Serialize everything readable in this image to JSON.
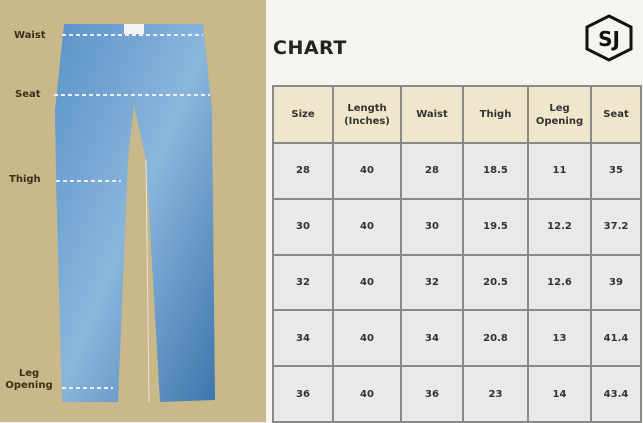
{
  "labels": {
    "waist": "Waist",
    "seat": "Seat",
    "thigh": "Thigh",
    "leg_opening": "Leg Opening"
  },
  "title": "CHART",
  "logo_text": "SJ",
  "colors": {
    "panel": "#c9b98a",
    "denim": "#4f86bd",
    "header": "#efe6cc",
    "cell": "#e9e9eb"
  },
  "table": {
    "headers": [
      "Size",
      "Length (Inches)",
      "Waist",
      "Thigh",
      "Leg Opening",
      "Seat"
    ],
    "rows": [
      [
        "28",
        "40",
        "28",
        "18.5",
        "11",
        "35"
      ],
      [
        "30",
        "40",
        "30",
        "19.5",
        "12.2",
        "37.2"
      ],
      [
        "32",
        "40",
        "32",
        "20.5",
        "12.6",
        "39"
      ],
      [
        "34",
        "40",
        "34",
        "20.8",
        "13",
        "41.4"
      ],
      [
        "36",
        "40",
        "36",
        "23",
        "14",
        "43.4"
      ]
    ]
  }
}
